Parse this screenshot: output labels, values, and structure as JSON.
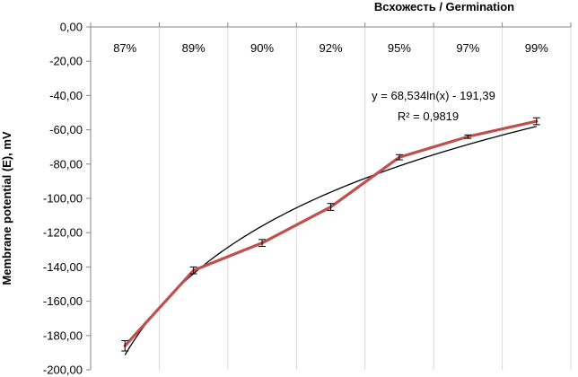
{
  "chart_data": {
    "type": "line",
    "xlabel": "Всхожесть / Germination",
    "ylabel": "Membrane potential (E), mV",
    "categories": [
      "87%",
      "89%",
      "90%",
      "92%",
      "95%",
      "97%",
      "99%"
    ],
    "x_axis_position": "top",
    "ylim": [
      -200,
      0
    ],
    "y_tick_step": 20,
    "y_tick_labels": [
      "0,00",
      "-20,00",
      "-40,00",
      "-60,00",
      "-80,00",
      "-100,00",
      "-120,00",
      "-140,00",
      "-160,00",
      "-180,00",
      "-200,00"
    ],
    "grid": "vertical",
    "series": [
      {
        "values": [
          -186,
          -142,
          -126,
          -105,
          -76,
          -64,
          -55
        ],
        "errors": [
          3,
          2,
          2,
          2,
          1.5,
          1,
          2
        ],
        "color": "#c0504d"
      }
    ],
    "trendline": {
      "type": "logarithmic",
      "a": 68.534,
      "b": -191.39,
      "color": "#000000",
      "equation_text": "y = 68,534ln(x) - 191,39",
      "r2_text": "R² = 0,9819"
    }
  }
}
